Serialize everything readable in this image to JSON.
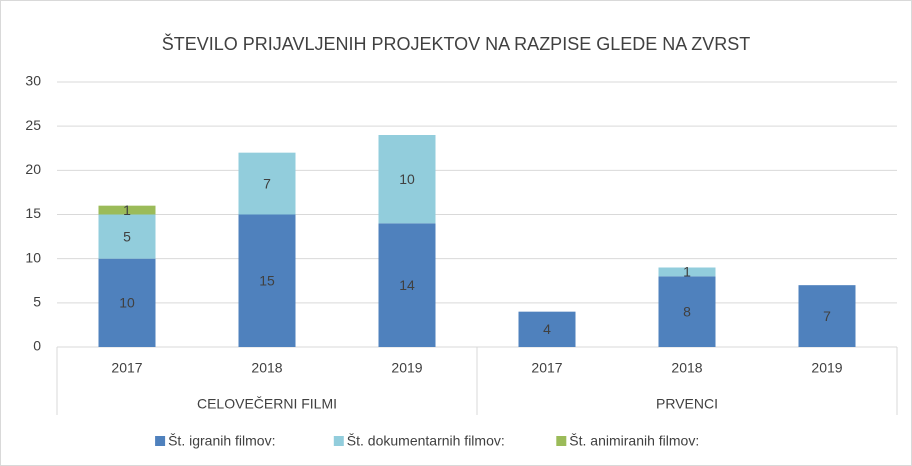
{
  "chart_data": {
    "type": "bar",
    "stacked": true,
    "title": "ŠTEVILO PRIJAVLJENIH PROJEKTOV NA RAZPISE GLEDE NA ZVRST",
    "groups": [
      {
        "label": "CELOVEČERNI FILMI",
        "categories": [
          "2017",
          "2018",
          "2019"
        ]
      },
      {
        "label": "PRVENCI",
        "categories": [
          "2017",
          "2018",
          "2019"
        ]
      }
    ],
    "series": [
      {
        "name": "Št. igranih filmov:",
        "color": "#4f81bd",
        "values": [
          10,
          15,
          14,
          4,
          8,
          7
        ]
      },
      {
        "name": "Št. dokumentarnih filmov:",
        "color": "#92cddc",
        "values": [
          5,
          7,
          10,
          null,
          1,
          null
        ]
      },
      {
        "name": "Št. animiranih filmov:",
        "color": "#9bbb59",
        "values": [
          1,
          null,
          null,
          null,
          null,
          null
        ]
      }
    ],
    "ylim": [
      0,
      30
    ],
    "yticks": [
      0,
      5,
      10,
      15,
      20,
      25,
      30
    ],
    "grid": true,
    "legend": "bottom"
  }
}
